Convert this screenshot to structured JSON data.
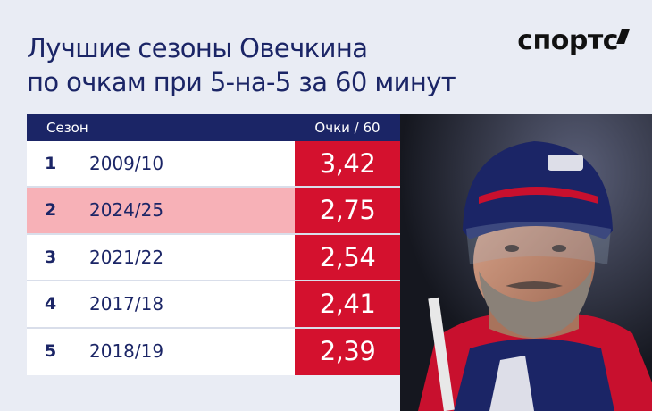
{
  "title_line1": "Лучшие сезоны Овечкина",
  "title_line2": "по очкам при 5-на-5 за 60 минут",
  "logo": "спортс",
  "table": {
    "header_season": "Сезон",
    "header_points": "Очки / 60",
    "rows": [
      {
        "rank": "1",
        "season": "2009/10",
        "value": "3,42"
      },
      {
        "rank": "2",
        "season": "2024/25",
        "value": "2,75"
      },
      {
        "rank": "3",
        "season": "2021/22",
        "value": "2,54"
      },
      {
        "rank": "4",
        "season": "2017/18",
        "value": "2,41"
      },
      {
        "rank": "5",
        "season": "2018/19",
        "value": "2,39"
      }
    ]
  },
  "colors": {
    "navy": "#1b2566",
    "red": "#d4112e",
    "highlight": "#f7b1b7",
    "background": "#e9ecf4"
  },
  "photo": "hockey-player-photo",
  "chart_data": {
    "type": "table",
    "title": "Лучшие сезоны Овечкина по очкам при 5-на-5 за 60 минут",
    "columns": [
      "Сезон",
      "Очки / 60"
    ],
    "categories": [
      "2009/10",
      "2024/25",
      "2021/22",
      "2017/18",
      "2018/19"
    ],
    "values": [
      3.42,
      2.75,
      2.54,
      2.41,
      2.39
    ],
    "highlighted": "2024/25"
  }
}
